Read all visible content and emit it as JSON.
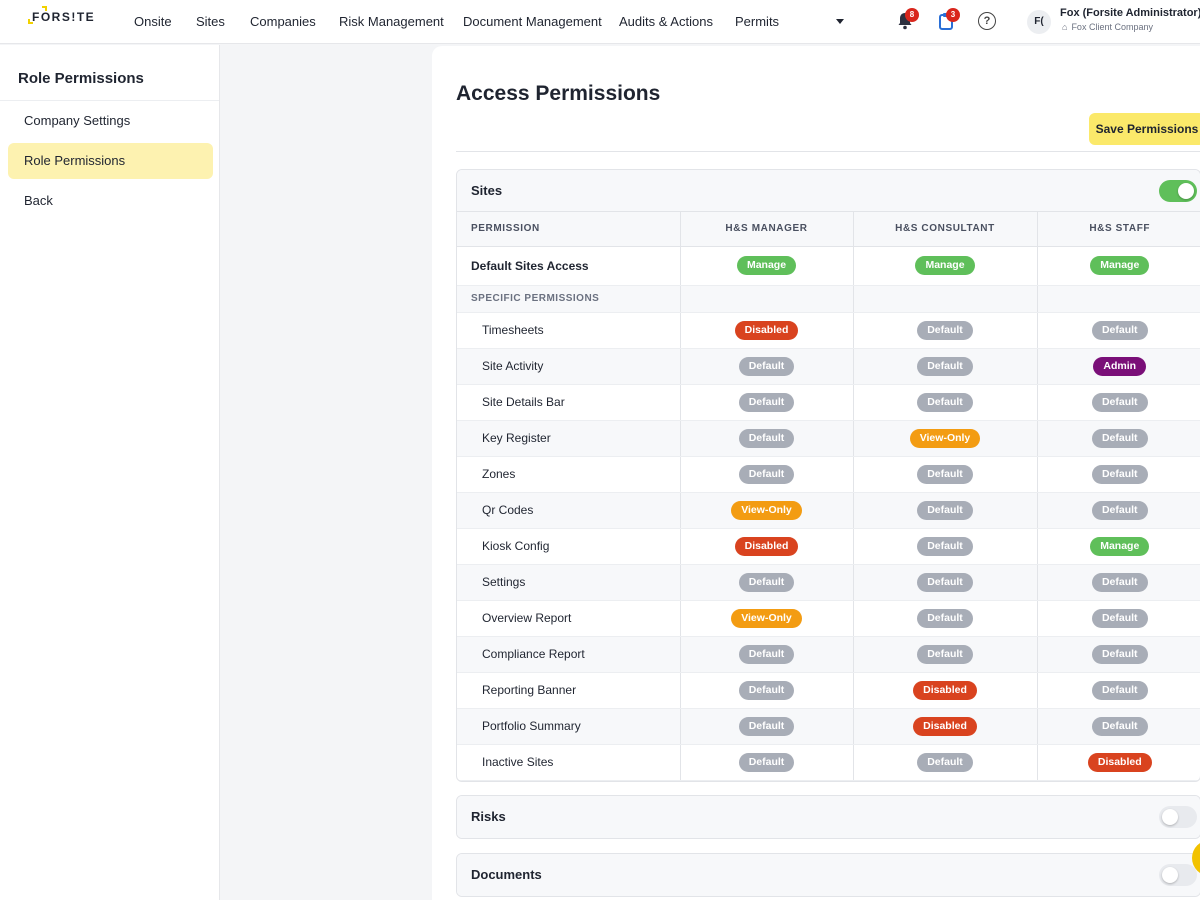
{
  "brand": {
    "logo_text": "FORS!TE",
    "accent": "#f2d200"
  },
  "nav": {
    "items": [
      "Onsite",
      "Sites",
      "Companies",
      "Risk Management",
      "Document Management",
      "Audits & Actions",
      "Permits"
    ],
    "notifications_count": "8",
    "tasks_count": "3",
    "help_label": "?"
  },
  "user": {
    "initials": "F(",
    "name": "Fox (Forsite Administrator)",
    "company": "Fox Client Company"
  },
  "sidebar": {
    "title": "Role Permissions",
    "items": [
      "Company Settings",
      "Role Permissions",
      "Back"
    ],
    "active_index": 1
  },
  "page": {
    "title": "Access Permissions",
    "save_label": "Save Permissions"
  },
  "table": {
    "columns": [
      "PERMISSION",
      "H&S MANAGER",
      "H&S CONSULTANT",
      "H&S STAFF"
    ],
    "specific_label": "SPECIFIC PERMISSIONS"
  },
  "sections": [
    {
      "title": "Sites",
      "enabled": true,
      "default_row": {
        "label": "Default Sites Access",
        "values": [
          "Manage",
          "Manage",
          "Manage"
        ]
      },
      "rows": [
        {
          "label": "Timesheets",
          "values": [
            "Disabled",
            "Default",
            "Default"
          ]
        },
        {
          "label": "Site Activity",
          "values": [
            "Default",
            "Default",
            "Admin"
          ]
        },
        {
          "label": "Site Details Bar",
          "values": [
            "Default",
            "Default",
            "Default"
          ]
        },
        {
          "label": "Key Register",
          "values": [
            "Default",
            "View-Only",
            "Default"
          ]
        },
        {
          "label": "Zones",
          "values": [
            "Default",
            "Default",
            "Default"
          ]
        },
        {
          "label": "Qr Codes",
          "values": [
            "View-Only",
            "Default",
            "Default"
          ]
        },
        {
          "label": "Kiosk Config",
          "values": [
            "Disabled",
            "Default",
            "Manage"
          ]
        },
        {
          "label": "Settings",
          "values": [
            "Default",
            "Default",
            "Default"
          ]
        },
        {
          "label": "Overview Report",
          "values": [
            "View-Only",
            "Default",
            "Default"
          ]
        },
        {
          "label": "Compliance Report",
          "values": [
            "Default",
            "Default",
            "Default"
          ]
        },
        {
          "label": "Reporting Banner",
          "values": [
            "Default",
            "Disabled",
            "Default"
          ]
        },
        {
          "label": "Portfolio Summary",
          "values": [
            "Default",
            "Disabled",
            "Default"
          ]
        },
        {
          "label": "Inactive Sites",
          "values": [
            "Default",
            "Default",
            "Disabled"
          ]
        }
      ]
    },
    {
      "title": "Risks",
      "enabled": false
    },
    {
      "title": "Documents",
      "enabled": false
    }
  ],
  "status_colors": {
    "Manage": "#5fbf5a",
    "Default": "#a8adb7",
    "Disabled": "#d9431f",
    "View-Only": "#f39c12",
    "Admin": "#7a0f78"
  }
}
